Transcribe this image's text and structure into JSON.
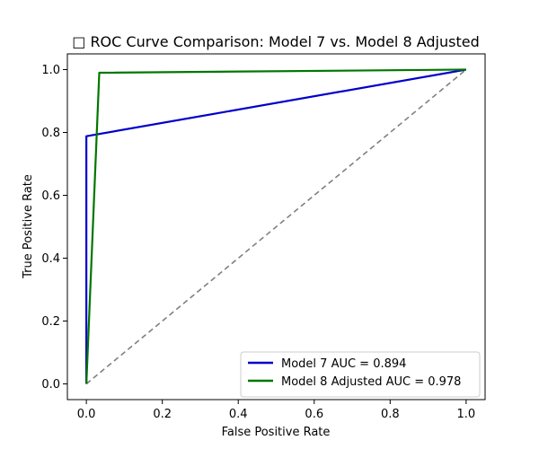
{
  "chart_data": {
    "type": "line",
    "title": "□ ROC Curve Comparison: Model 7 vs. Model 8 Adjusted",
    "xlabel": "False Positive Rate",
    "ylabel": "True Positive Rate",
    "xlim": [
      -0.05,
      1.05
    ],
    "ylim": [
      -0.05,
      1.05
    ],
    "xticks": [
      "0.0",
      "0.2",
      "0.4",
      "0.6",
      "0.8",
      "1.0"
    ],
    "yticks": [
      "0.0",
      "0.2",
      "0.4",
      "0.6",
      "0.8",
      "1.0"
    ],
    "grid": false,
    "legend_position": "bottom-right",
    "series": [
      {
        "name": "Model 7 AUC = 0.894",
        "color": "#0000cc",
        "x": [
          0.0,
          0.0,
          1.0
        ],
        "y": [
          0.0,
          0.788,
          1.0
        ]
      },
      {
        "name": "Model 8 Adjusted AUC = 0.978",
        "color": "#007700",
        "x": [
          0.0,
          0.034,
          1.0
        ],
        "y": [
          0.0,
          0.99,
          1.0
        ]
      }
    ],
    "reference_line": {
      "style": "dashed",
      "color": "#808080",
      "x": [
        0.0,
        1.0
      ],
      "y": [
        0.0,
        1.0
      ]
    }
  }
}
